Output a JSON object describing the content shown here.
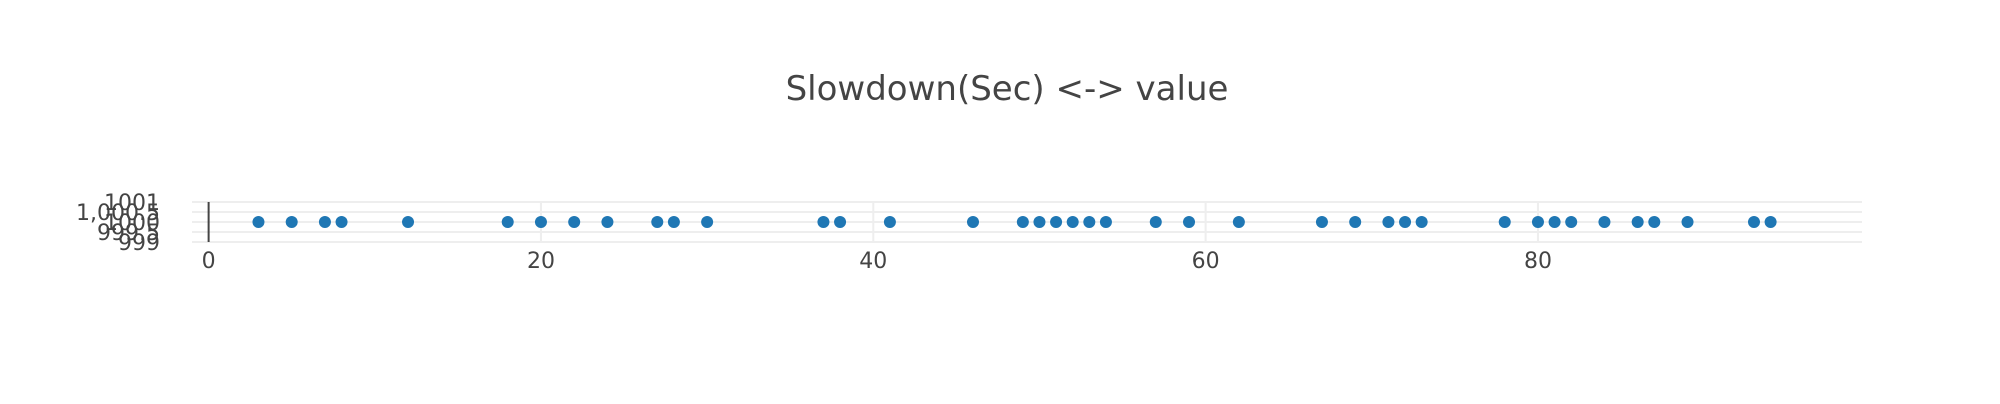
{
  "chart_data": {
    "type": "scatter",
    "title": "Slowdown(Sec) <-> value",
    "xlabel": "",
    "ylabel": "",
    "xlim": [
      -1,
      99.5
    ],
    "ylim": [
      999,
      1001
    ],
    "grid": true,
    "legend": "none",
    "marker_color": "#1f77b4",
    "x_ticks": [
      {
        "value": 0,
        "label": "0"
      },
      {
        "value": 20,
        "label": "20"
      },
      {
        "value": 40,
        "label": "40"
      },
      {
        "value": 60,
        "label": "60"
      },
      {
        "value": 80,
        "label": "80"
      }
    ],
    "y_ticks": [
      {
        "value": 999,
        "label": "999"
      },
      {
        "value": 999.5,
        "label": "999.5"
      },
      {
        "value": 1000,
        "label": "1000"
      },
      {
        "value": 1000.5,
        "label": "1,000.5"
      },
      {
        "value": 1001,
        "label": "1001"
      }
    ],
    "series": [
      {
        "x": [
          3,
          5,
          7,
          8,
          12,
          18,
          20,
          22,
          24,
          27,
          28,
          30,
          37,
          38,
          41,
          46,
          49,
          50,
          51,
          52,
          53,
          54,
          57,
          59,
          62,
          67,
          69,
          71,
          72,
          73,
          78,
          80,
          81,
          82,
          84,
          86,
          87,
          89,
          93,
          94
        ],
        "y": [
          1000,
          1000,
          1000,
          1000,
          1000,
          1000,
          1000,
          1000,
          1000,
          1000,
          1000,
          1000,
          1000,
          1000,
          1000,
          1000,
          1000,
          1000,
          1000,
          1000,
          1000,
          1000,
          1000,
          1000,
          1000,
          1000,
          1000,
          1000,
          1000,
          1000,
          1000,
          1000,
          1000,
          1000,
          1000,
          1000,
          1000,
          1000,
          1000,
          1000
        ]
      }
    ]
  }
}
